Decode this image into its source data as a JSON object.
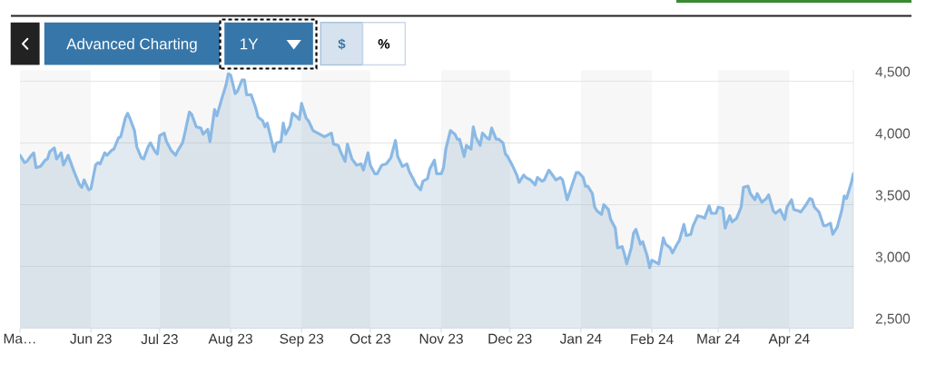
{
  "chart_data": {
    "type": "area",
    "color": "#8ab9e5",
    "x": [
      "2023-05-01",
      "2023-05-03",
      "2023-05-04",
      "2023-05-06",
      "2023-05-07",
      "2023-05-08",
      "2023-05-10",
      "2023-05-12",
      "2023-05-13",
      "2023-05-14",
      "2023-05-16",
      "2023-05-17",
      "2023-05-19",
      "2023-05-20",
      "2023-05-22",
      "2023-05-23",
      "2023-05-25",
      "2023-05-27",
      "2023-05-28",
      "2023-05-29",
      "2023-05-31",
      "2023-06-01",
      "2023-06-03",
      "2023-06-04",
      "2023-06-05",
      "2023-06-07",
      "2023-06-08",
      "2023-06-10",
      "2023-06-11",
      "2023-06-13",
      "2023-06-14",
      "2023-06-16",
      "2023-06-17",
      "2023-06-18",
      "2023-06-20",
      "2023-06-21",
      "2023-06-23",
      "2023-06-24",
      "2023-06-26",
      "2023-06-27",
      "2023-06-29",
      "2023-06-30",
      "2023-07-01",
      "2023-07-03",
      "2023-07-04",
      "2023-07-06",
      "2023-07-08",
      "2023-07-09",
      "2023-07-11",
      "2023-07-12",
      "2023-07-14",
      "2023-07-15",
      "2023-07-17",
      "2023-07-19",
      "2023-07-20",
      "2023-07-22",
      "2023-07-23",
      "2023-07-25",
      "2023-07-26",
      "2023-07-28",
      "2023-07-30",
      "2023-07-31",
      "2023-08-01",
      "2023-08-03",
      "2023-08-04",
      "2023-08-06",
      "2023-08-07",
      "2023-08-08",
      "2023-08-10",
      "2023-08-12",
      "2023-08-13",
      "2023-08-15",
      "2023-08-16",
      "2023-08-17",
      "2023-08-19",
      "2023-08-20",
      "2023-08-21",
      "2023-08-23",
      "2023-08-24",
      "2023-08-25",
      "2023-08-27",
      "2023-08-28",
      "2023-08-30",
      "2023-08-31",
      "2023-09-01",
      "2023-09-03",
      "2023-09-04",
      "2023-09-06",
      "2023-09-08",
      "2023-09-11",
      "2023-09-12",
      "2023-09-14",
      "2023-09-15",
      "2023-09-17",
      "2023-09-18",
      "2023-09-20",
      "2023-09-21",
      "2023-09-23",
      "2023-09-25",
      "2023-09-27",
      "2023-09-28",
      "2023-09-30",
      "2023-10-01",
      "2023-10-03",
      "2023-10-04",
      "2023-10-06",
      "2023-10-08",
      "2023-10-10",
      "2023-10-12",
      "2023-10-13",
      "2023-10-15",
      "2023-10-17",
      "2023-10-18",
      "2023-10-20",
      "2023-10-21",
      "2023-10-23",
      "2023-10-24",
      "2023-10-26",
      "2023-10-27",
      "2023-10-29",
      "2023-10-30",
      "2023-11-01",
      "2023-11-02",
      "2023-11-03",
      "2023-11-05",
      "2023-11-07",
      "2023-11-08",
      "2023-11-09",
      "2023-11-11",
      "2023-11-12",
      "2023-11-14",
      "2023-11-15",
      "2023-11-16",
      "2023-11-18",
      "2023-11-19",
      "2023-11-21",
      "2023-11-22",
      "2023-11-23",
      "2023-11-25",
      "2023-11-26",
      "2023-11-28",
      "2023-11-29",
      "2023-11-30",
      "2023-12-02",
      "2023-12-04",
      "2023-12-05",
      "2023-12-07",
      "2023-12-08",
      "2023-12-10",
      "2023-12-12",
      "2023-12-13",
      "2023-12-15",
      "2023-12-16",
      "2023-12-18",
      "2023-12-20",
      "2023-12-21",
      "2023-12-23",
      "2023-12-24",
      "2023-12-26",
      "2023-12-28",
      "2023-12-30",
      "2023-12-31",
      "2024-01-02",
      "2024-01-03",
      "2024-01-04",
      "2024-01-06",
      "2024-01-07",
      "2024-01-08",
      "2024-01-10",
      "2024-01-11",
      "2024-01-13",
      "2024-01-14",
      "2024-01-16",
      "2024-01-17",
      "2024-01-19",
      "2024-01-20",
      "2024-01-21",
      "2024-01-23",
      "2024-01-24",
      "2024-01-25",
      "2024-01-27",
      "2024-01-28",
      "2024-01-30",
      "2024-01-31",
      "2024-02-01",
      "2024-02-03",
      "2024-02-04",
      "2024-02-06",
      "2024-02-07",
      "2024-02-09",
      "2024-02-10",
      "2024-02-12",
      "2024-02-13",
      "2024-02-15",
      "2024-02-16",
      "2024-02-18",
      "2024-02-19",
      "2024-02-21",
      "2024-02-23",
      "2024-02-24",
      "2024-02-26",
      "2024-02-27",
      "2024-02-29",
      "2024-03-01",
      "2024-03-03",
      "2024-03-04",
      "2024-03-06",
      "2024-03-07",
      "2024-03-09",
      "2024-03-11",
      "2024-03-12",
      "2024-03-14",
      "2024-03-15",
      "2024-03-17",
      "2024-03-18",
      "2024-03-20",
      "2024-03-22",
      "2024-03-23",
      "2024-03-25",
      "2024-03-26",
      "2024-03-28",
      "2024-03-30",
      "2024-03-31",
      "2024-04-02",
      "2024-04-03",
      "2024-04-05",
      "2024-04-06",
      "2024-04-08",
      "2024-04-10",
      "2024-04-11",
      "2024-04-12",
      "2024-04-14",
      "2024-04-16",
      "2024-04-17",
      "2024-04-19",
      "2024-04-20",
      "2024-04-22",
      "2024-04-24",
      "2024-04-25",
      "2024-04-26",
      "2024-04-28",
      "2024-04-29"
    ],
    "values": [
      3900,
      3840,
      3850,
      3900,
      3920,
      3800,
      3810,
      3860,
      3870,
      3930,
      3960,
      3870,
      3920,
      3820,
      3900,
      3850,
      3750,
      3660,
      3640,
      3700,
      3620,
      3630,
      3820,
      3840,
      3830,
      3920,
      3900,
      3940,
      3950,
      4040,
      4050,
      4200,
      4240,
      4200,
      4100,
      3970,
      3880,
      3870,
      3970,
      4000,
      3930,
      3910,
      4060,
      4080,
      4010,
      3940,
      3900,
      3940,
      4000,
      4080,
      4250,
      4230,
      4130,
      4120,
      4070,
      4110,
      4010,
      4270,
      4220,
      4350,
      4470,
      4560,
      4550,
      4400,
      4420,
      4510,
      4510,
      4390,
      4390,
      4280,
      4210,
      4180,
      4130,
      4160,
      4010,
      3930,
      4000,
      4010,
      4160,
      4070,
      4140,
      4240,
      4210,
      4190,
      4320,
      4200,
      4180,
      4100,
      4080,
      4050,
      4060,
      4080,
      3990,
      3980,
      3930,
      3850,
      3990,
      3870,
      3820,
      3830,
      3780,
      3920,
      3820,
      3750,
      3750,
      3820,
      3830,
      3880,
      4020,
      3890,
      3810,
      3830,
      3770,
      3700,
      3660,
      3620,
      3690,
      3710,
      3790,
      3860,
      3750,
      3750,
      3800,
      3950,
      4100,
      4070,
      4030,
      4030,
      3890,
      3980,
      3950,
      4130,
      4050,
      3980,
      4080,
      4040,
      4030,
      4120,
      4030,
      4030,
      4000,
      3910,
      3890,
      3820,
      3740,
      3680,
      3740,
      3720,
      3700,
      3660,
      3720,
      3690,
      3700,
      3780,
      3730,
      3700,
      3720,
      3700,
      3540,
      3650,
      3760,
      3760,
      3720,
      3650,
      3650,
      3590,
      3480,
      3450,
      3420,
      3500,
      3460,
      3380,
      3310,
      3150,
      3160,
      3100,
      3020,
      3150,
      3270,
      3300,
      3180,
      3200,
      3080,
      2990,
      3050,
      3030,
      3020,
      3230,
      3180,
      3150,
      3110,
      3180,
      3210,
      3340,
      3250,
      3260,
      3330,
      3410,
      3400,
      3390,
      3490,
      3430,
      3430,
      3480,
      3470,
      3310,
      3410,
      3360,
      3390,
      3480,
      3640,
      3650,
      3590,
      3540,
      3590,
      3520,
      3550,
      3580,
      3450,
      3430,
      3460,
      3380,
      3480,
      3540,
      3460,
      3450,
      3440,
      3490,
      3550,
      3540,
      3480,
      3440,
      3330,
      3330,
      3350,
      3260,
      3320,
      3460,
      3570,
      3550,
      3670,
      3750
    ],
    "xlim": [
      "2023-05-01",
      "2024-04-29"
    ],
    "ylim": [
      2500,
      4590
    ],
    "xticks": [
      {
        "value": "2023-05-01",
        "label": "Ma…"
      },
      {
        "value": "2023-06-01",
        "label": "Jun 23"
      },
      {
        "value": "2023-07-01",
        "label": "Jul 23"
      },
      {
        "value": "2023-08-01",
        "label": "Aug 23"
      },
      {
        "value": "2023-09-01",
        "label": "Sep 23"
      },
      {
        "value": "2023-10-01",
        "label": "Oct 23"
      },
      {
        "value": "2023-11-01",
        "label": "Nov 23"
      },
      {
        "value": "2023-12-01",
        "label": "Dec 23"
      },
      {
        "value": "2024-01-01",
        "label": "Jan 24"
      },
      {
        "value": "2024-02-01",
        "label": "Feb 24"
      },
      {
        "value": "2024-03-01",
        "label": "Mar 24"
      },
      {
        "value": "2024-04-01",
        "label": "Apr 24"
      }
    ],
    "yticks": [
      {
        "value": 2500,
        "label": "2,500"
      },
      {
        "value": 3000,
        "label": "3,000"
      },
      {
        "value": 3500,
        "label": "3,500"
      },
      {
        "value": 4000,
        "label": "4,000"
      },
      {
        "value": 4500,
        "label": "4,500"
      }
    ],
    "grid": "y",
    "bands": [
      {
        "axis": "x",
        "from": "2023-05-01",
        "to": "2023-06-01",
        "color": "#f7f7f7"
      },
      {
        "axis": "x",
        "from": "2023-07-01",
        "to": "2023-08-01",
        "color": "#f7f7f7"
      },
      {
        "axis": "x",
        "from": "2023-09-01",
        "to": "2023-10-01",
        "color": "#f7f7f7"
      },
      {
        "axis": "x",
        "from": "2023-11-01",
        "to": "2023-12-01",
        "color": "#f7f7f7"
      },
      {
        "axis": "x",
        "from": "2024-01-01",
        "to": "2024-02-01",
        "color": "#f7f7f7"
      },
      {
        "axis": "x",
        "from": "2024-03-01",
        "to": "2024-04-01",
        "color": "#f7f7f7"
      }
    ],
    "annotations": [
      "Advanced Charting",
      "1Y",
      "$",
      "%"
    ]
  }
}
